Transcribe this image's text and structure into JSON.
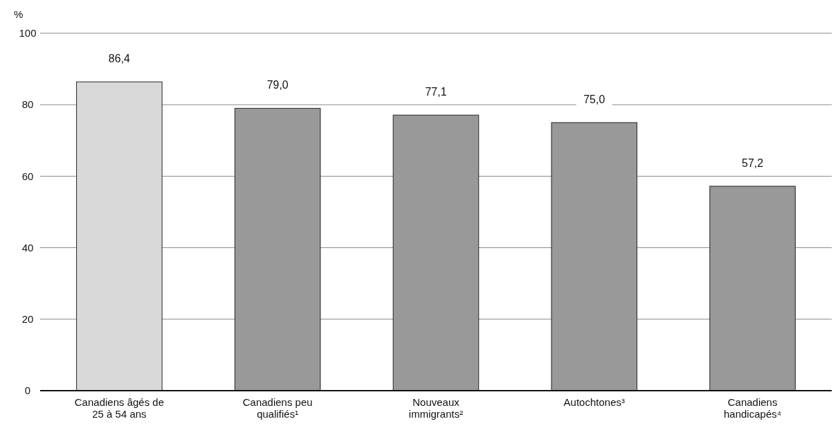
{
  "chart_data": {
    "type": "bar",
    "ylabel": "%",
    "categories": [
      "Canadiens âgés de 25 à 54 ans",
      "Canadiens peu qualifiés¹",
      "Nouveaux immigrants²",
      "Autochtones³",
      "Canadiens handicapés⁴"
    ],
    "values": [
      86.4,
      79.0,
      77.1,
      75.0,
      57.2
    ],
    "colors": [
      "#d9d9d9",
      "#999999",
      "#999999",
      "#999999",
      "#999999"
    ],
    "value_labels": [
      "86,4",
      "79,0",
      "77,1",
      "75,0",
      "57,2"
    ],
    "ylim": [
      0,
      100
    ],
    "yticks": [
      0,
      20,
      40,
      60,
      80,
      100
    ],
    "grid": "y"
  }
}
